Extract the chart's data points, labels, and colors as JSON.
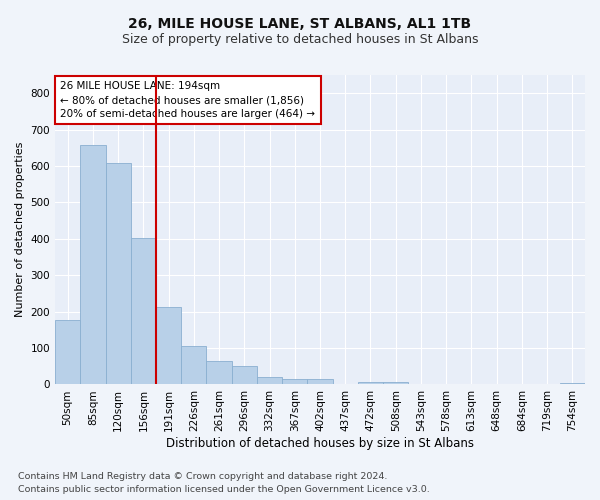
{
  "title": "26, MILE HOUSE LANE, ST ALBANS, AL1 1TB",
  "subtitle": "Size of property relative to detached houses in St Albans",
  "xlabel": "Distribution of detached houses by size in St Albans",
  "ylabel": "Number of detached properties",
  "footnote1": "Contains HM Land Registry data © Crown copyright and database right 2024.",
  "footnote2": "Contains public sector information licensed under the Open Government Licence v3.0.",
  "bin_labels": [
    "50sqm",
    "85sqm",
    "120sqm",
    "156sqm",
    "191sqm",
    "226sqm",
    "261sqm",
    "296sqm",
    "332sqm",
    "367sqm",
    "402sqm",
    "437sqm",
    "472sqm",
    "508sqm",
    "543sqm",
    "578sqm",
    "613sqm",
    "648sqm",
    "684sqm",
    "719sqm",
    "754sqm"
  ],
  "bar_values": [
    178,
    657,
    608,
    401,
    214,
    107,
    64,
    50,
    20,
    16,
    14,
    0,
    8,
    6,
    0,
    0,
    0,
    0,
    0,
    0,
    5
  ],
  "bar_color": "#b8d0e8",
  "bar_edge_color": "#8aafd0",
  "vline_x_index": 3.5,
  "vline_color": "#cc0000",
  "annotation_text": "26 MILE HOUSE LANE: 194sqm\n← 80% of detached houses are smaller (1,856)\n20% of semi-detached houses are larger (464) →",
  "annotation_box_color": "#ffffff",
  "annotation_box_edge": "#cc0000",
  "ylim": [
    0,
    850
  ],
  "yticks": [
    0,
    100,
    200,
    300,
    400,
    500,
    600,
    700,
    800
  ],
  "background_color": "#f0f4fa",
  "plot_bg_color": "#e8eef8",
  "grid_color": "#ffffff",
  "title_fontsize": 10,
  "subtitle_fontsize": 9,
  "ylabel_fontsize": 8,
  "xlabel_fontsize": 8.5,
  "tick_fontsize": 7.5,
  "footnote_fontsize": 6.8,
  "annot_fontsize": 7.5
}
